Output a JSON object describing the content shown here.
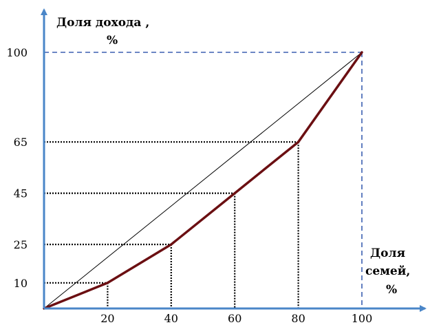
{
  "chart_data": {
    "type": "line",
    "ylabel_line1": "Доля дохода ,",
    "ylabel_line2": "%",
    "xlabel_line1": "Доля",
    "xlabel_line2": "семей,",
    "xlabel_line3": "%",
    "xlim": [
      0,
      100
    ],
    "ylim": [
      0,
      100
    ],
    "x_ticks": [
      20,
      40,
      60,
      80,
      100
    ],
    "y_ticks": [
      10,
      25,
      45,
      65,
      100
    ],
    "series": [
      {
        "role": "equality-line",
        "color": "#000000",
        "x": [
          0,
          100
        ],
        "y": [
          0,
          100
        ]
      },
      {
        "role": "lorenz-curve",
        "color": "#6b0f12",
        "x": [
          0,
          20,
          40,
          60,
          80,
          100
        ],
        "y": [
          0,
          10,
          25,
          45,
          65,
          100
        ]
      }
    ],
    "guides": [
      {
        "x": 20,
        "y": 10
      },
      {
        "x": 40,
        "y": 25
      },
      {
        "x": 60,
        "y": 45
      },
      {
        "x": 80,
        "y": 65
      },
      {
        "x": 100,
        "y": 100
      }
    ],
    "colors": {
      "axis": "#4a86c8",
      "curve": "#6b0f12",
      "guide": "#000000",
      "guide_100": "#3a5fb0"
    }
  }
}
